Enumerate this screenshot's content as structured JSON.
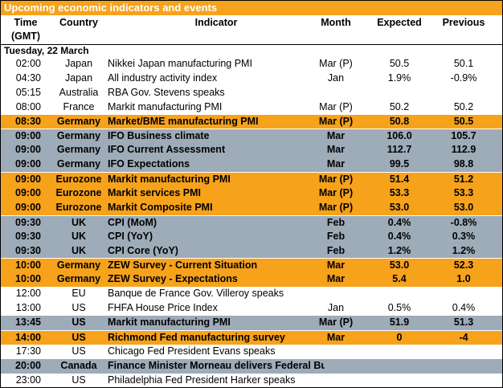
{
  "colors": {
    "title_bg": "#f7a21b",
    "highlight_orange": "#f7a21b",
    "highlight_gray": "#9eabb8",
    "plain": "#ffffff"
  },
  "title": "Upcoming economic indicators and events",
  "headers": {
    "time_line1": "Time",
    "time_line2": "(GMT)",
    "country": "Country",
    "indicator": "Indicator",
    "month": "Month",
    "expected": "Expected",
    "previous": "Previous"
  },
  "day_label": "Tuesday, 22 March",
  "rows": [
    {
      "time": "02:00",
      "country": "Japan",
      "indicator": "Nikkei Japan manufacturing PMI",
      "month": "Mar (P)",
      "expected": "50.5",
      "previous": "50.1",
      "style": "plain"
    },
    {
      "time": "04:30",
      "country": "Japan",
      "indicator": "All industry activity index",
      "month": "Jan",
      "expected": "1.9%",
      "previous": "-0.9%",
      "style": "plain"
    },
    {
      "time": "05:15",
      "country": "Australia",
      "indicator": "RBA Gov. Stevens speaks",
      "month": "",
      "expected": "",
      "previous": "",
      "style": "plain"
    },
    {
      "time": "08:00",
      "country": "France",
      "indicator": "Markit manufacturing PMI",
      "month": "Mar (P)",
      "expected": "50.2",
      "previous": "50.2",
      "style": "plain"
    },
    {
      "time": "08:30",
      "country": "Germany",
      "indicator": "Market/BME manufacturing PMI",
      "month": "Mar (P)",
      "expected": "50.8",
      "previous": "50.5",
      "style": "orange"
    },
    {
      "time": "09:00",
      "country": "Germany",
      "indicator": "IFO Business climate",
      "month": "Mar",
      "expected": "106.0",
      "previous": "105.7",
      "style": "gray"
    },
    {
      "time": "09:00",
      "country": "Germany",
      "indicator": "IFO Current Assessment",
      "month": "Mar",
      "expected": "112.7",
      "previous": "112.9",
      "style": "gray"
    },
    {
      "time": "09:00",
      "country": "Germany",
      "indicator": "IFO Expectations",
      "month": "Mar",
      "expected": "99.5",
      "previous": "98.8",
      "style": "gray"
    },
    {
      "time": "09:00",
      "country": "Eurozone",
      "indicator": "Markit manufacturing PMI",
      "month": "Mar (P)",
      "expected": "51.4",
      "previous": "51.2",
      "style": "orange"
    },
    {
      "time": "09:00",
      "country": "Eurozone",
      "indicator": "Markit services PMI",
      "month": "Mar (P)",
      "expected": "53.3",
      "previous": "53.3",
      "style": "orange"
    },
    {
      "time": "09:00",
      "country": "Eurozone",
      "indicator": "Markit Composite PMI",
      "month": "Mar (P)",
      "expected": "53.0",
      "previous": "53.0",
      "style": "orange"
    },
    {
      "time": "09:30",
      "country": "UK",
      "indicator": "CPI (MoM)",
      "month": "Feb",
      "expected": "0.4%",
      "previous": "-0.8%",
      "style": "gray"
    },
    {
      "time": "09:30",
      "country": "UK",
      "indicator": "CPI (YoY)",
      "month": "Feb",
      "expected": "0.4%",
      "previous": "0.3%",
      "style": "gray"
    },
    {
      "time": "09:30",
      "country": "UK",
      "indicator": "CPI Core (YoY)",
      "month": "Feb",
      "expected": "1.2%",
      "previous": "1.2%",
      "style": "gray"
    },
    {
      "time": "10:00",
      "country": "Germany",
      "indicator": "ZEW Survey - Current Situation",
      "month": "Mar",
      "expected": "53.0",
      "previous": "52.3",
      "style": "orange"
    },
    {
      "time": "10:00",
      "country": "Germany",
      "indicator": "ZEW Survey - Expectations",
      "month": "Mar",
      "expected": "5.4",
      "previous": "1.0",
      "style": "orange"
    },
    {
      "time": "12:00",
      "country": "EU",
      "indicator": "Banque de France Gov. Villeroy speaks",
      "month": "",
      "expected": "",
      "previous": "",
      "style": "plain"
    },
    {
      "time": "13:00",
      "country": "US",
      "indicator": "FHFA House Price Index",
      "month": "Jan",
      "expected": "0.5%",
      "previous": "0.4%",
      "style": "plain"
    },
    {
      "time": "13:45",
      "country": "US",
      "indicator": "Markit manufacturing PMI",
      "month": "Mar (P)",
      "expected": "51.9",
      "previous": "51.3",
      "style": "gray"
    },
    {
      "time": "14:00",
      "country": "US",
      "indicator": "Richmond Fed manufacturing survey",
      "month": "Mar",
      "expected": "0",
      "previous": "-4",
      "style": "orange"
    },
    {
      "time": "17:30",
      "country": "US",
      "indicator": "Chicago Fed President Evans speaks",
      "month": "",
      "expected": "",
      "previous": "",
      "style": "plain"
    },
    {
      "time": "20:00",
      "country": "Canada",
      "indicator": "Finance Minister Morneau delivers Federal Budget",
      "month": "",
      "expected": "",
      "previous": "",
      "style": "gray"
    },
    {
      "time": "23:00",
      "country": "US",
      "indicator": "Philadelphia Fed President Harker speaks",
      "month": "",
      "expected": "",
      "previous": "",
      "style": "plain"
    }
  ]
}
